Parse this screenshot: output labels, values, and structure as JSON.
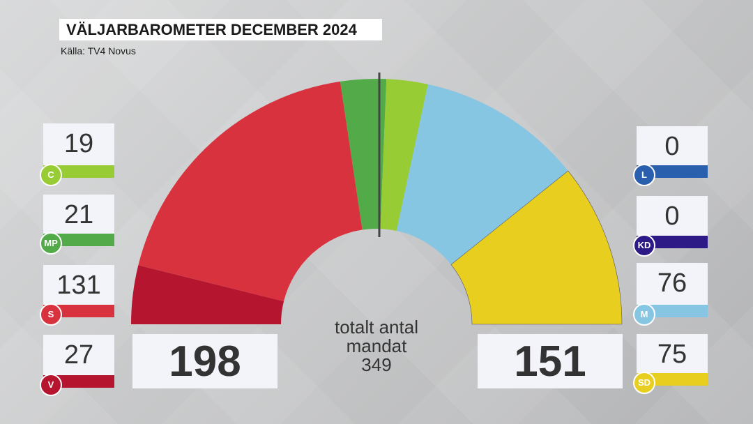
{
  "title": "VÄLJARBAROMETER DECEMBER 2024",
  "source": "Källa: TV4 Novus",
  "chart_data": {
    "type": "parliament-semicircle",
    "total_seats": 349,
    "center_label": [
      "totalt antal",
      "mandat",
      "349"
    ],
    "arc_order": [
      "V",
      "S",
      "MP",
      "C",
      "M",
      "SD"
    ],
    "parties": [
      {
        "name": "C",
        "seats": 19,
        "color": "#97cc34",
        "side": "left"
      },
      {
        "name": "MP",
        "seats": 21,
        "color": "#52ab48",
        "side": "left"
      },
      {
        "name": "S",
        "seats": 131,
        "color": "#d9323f",
        "side": "left"
      },
      {
        "name": "V",
        "seats": 27,
        "color": "#b5152f",
        "side": "left"
      },
      {
        "name": "L",
        "seats": 0,
        "color": "#2a5fae",
        "side": "right"
      },
      {
        "name": "KD",
        "seats": 0,
        "color": "#2e1a87",
        "side": "right"
      },
      {
        "name": "M",
        "seats": 76,
        "color": "#86c6e3",
        "side": "right"
      },
      {
        "name": "SD",
        "seats": 75,
        "color": "#e8cf1f",
        "side": "right"
      }
    ],
    "bloc_totals": {
      "left": 198,
      "right": 151
    }
  }
}
